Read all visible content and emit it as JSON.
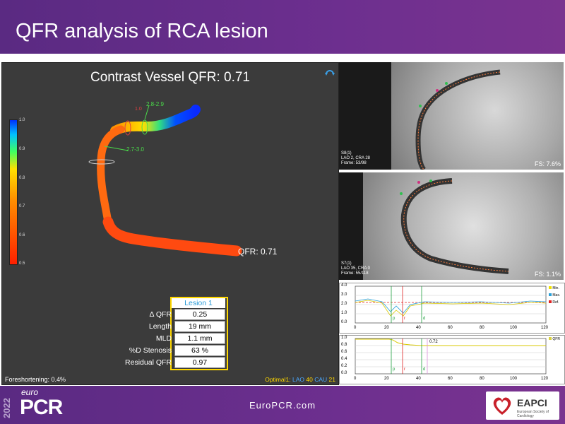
{
  "header": {
    "title": "QFR analysis of RCA lesion"
  },
  "qfr_panel": {
    "title": "Contrast Vessel QFR: 0.71",
    "colorbar_ticks": [
      "1.0",
      "0.9",
      "0.8",
      "0.7",
      "0.6",
      "0.5"
    ],
    "vessel_labels": {
      "upper": "2.8-2.9",
      "lower": "2.7-3.0",
      "marker": "1.0"
    },
    "end_label": "QFR: 0.71",
    "lesion_header": "Lesion 1",
    "lesion_rows": [
      {
        "label": "Δ QFR",
        "value": "0.25"
      },
      {
        "label": "Length",
        "value": "19 mm"
      },
      {
        "label": "MLD",
        "value": "1.1 mm"
      },
      {
        "label": "%D Stenosis",
        "value": "63 %"
      },
      {
        "label": "Residual QFR",
        "value": "0.97"
      }
    ],
    "foreshortening": "Foreshortening: 0.4%",
    "optimal": {
      "prefix": "Optimal1: ",
      "lao_label": "LAO",
      "lao_value": "40",
      "cau_label": "CAU",
      "cau_value": "21"
    },
    "colors": {
      "low": "#ff2a00",
      "mid": "#ff9a00",
      "high": "#0a3cff",
      "background": "#3b3b3b"
    }
  },
  "angio_top": {
    "info": [
      "S8(1)",
      "LAO 2, CRA 28",
      "Frame: 53/98"
    ],
    "fs": "FS: 7.6%"
  },
  "angio_bottom": {
    "info": [
      "S7(1)",
      "LAO 35, CRA 0",
      "Frame: 55/118"
    ],
    "fs": "FS: 1.1%"
  },
  "diameter_graph": {
    "y_ticks": [
      "4.0",
      "3.0",
      "2.0",
      "1.0",
      "0.0"
    ],
    "x_ticks": [
      "0",
      "20",
      "40",
      "60",
      "80",
      "100",
      "120"
    ],
    "legend": [
      {
        "label": "Min.",
        "color": "#f0e000"
      },
      {
        "label": "Max.",
        "color": "#2aa0d8"
      },
      {
        "label": "Ref.",
        "color": "#e02020"
      }
    ],
    "markers": [
      "p",
      "r",
      "d"
    ]
  },
  "qfr_graph": {
    "y_ticks": [
      "1.0",
      "0.8",
      "0.6",
      "0.4",
      "0.2",
      "0.0"
    ],
    "x_ticks": [
      "0",
      "20",
      "40",
      "60",
      "80",
      "100",
      "120"
    ],
    "legend": [
      {
        "label": "QFR",
        "color": "#d8d040"
      }
    ],
    "value_label": "0.72",
    "markers": [
      "p",
      "r",
      "d"
    ]
  },
  "footer": {
    "url": "EuroPCR.com",
    "logo_euro": "euro",
    "logo_pcr": "PCR",
    "logo_year": "2022",
    "eapci": "EAPCI",
    "eapci_sub": "European Society of Cardiology"
  }
}
